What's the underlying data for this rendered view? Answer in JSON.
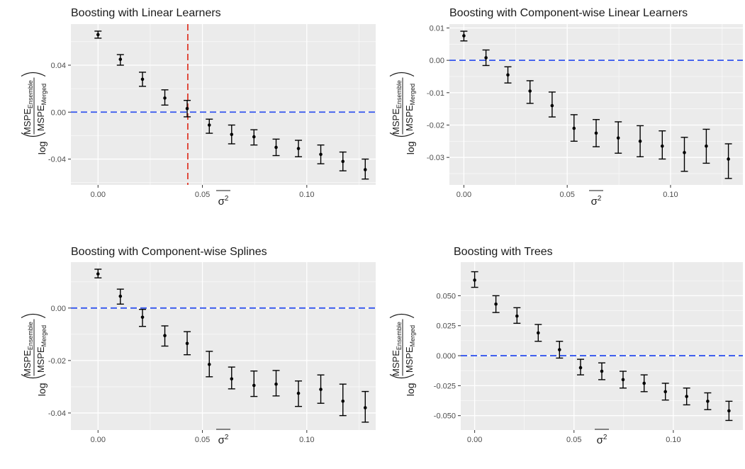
{
  "colors": {
    "panel_bg": "#ebebeb",
    "grid_major": "#ffffff",
    "reference_line": "#3355ee",
    "highlight_line": "#e03a2a",
    "point": "#000000",
    "text_dark": "#1a1a1a",
    "tick_text": "#4d4d4d"
  },
  "chart_data": [
    {
      "type": "scatter",
      "title": "Boosting with Linear Learners",
      "xlabel": "σ̄²",
      "ylabel": "log(MSPE_Ensemble / MSPE_Merged)",
      "ylabel_parts": {
        "fn": "log",
        "num": "MSPE",
        "num_sub": "Ensemble",
        "den": "MSPE",
        "den_sub": "Merged"
      },
      "xlim": [
        -0.013,
        0.133
      ],
      "ylim": [
        -0.062,
        0.075
      ],
      "x_ticks": [
        0,
        0.05,
        0.1
      ],
      "x_tick_labels": [
        "0.00",
        "0.05",
        "0.10"
      ],
      "y_ticks": [
        -0.04,
        0,
        0.04
      ],
      "y_tick_labels": [
        "-0.04",
        "0.00",
        "0.04"
      ],
      "hline": 0,
      "vline": 0.043,
      "grid": true,
      "x": [
        0,
        0.0107,
        0.0213,
        0.032,
        0.0427,
        0.0533,
        0.064,
        0.0747,
        0.0853,
        0.096,
        0.1067,
        0.1173,
        0.128
      ],
      "y": [
        0.066,
        0.045,
        0.028,
        0.012,
        0.003,
        -0.011,
        -0.019,
        -0.021,
        -0.03,
        -0.031,
        -0.036,
        -0.042,
        -0.049
      ],
      "ymin": [
        0.063,
        0.04,
        0.022,
        0.006,
        -0.004,
        -0.018,
        -0.027,
        -0.028,
        -0.037,
        -0.038,
        -0.044,
        -0.05,
        -0.057
      ],
      "ymax": [
        0.069,
        0.049,
        0.034,
        0.019,
        0.01,
        -0.006,
        -0.011,
        -0.015,
        -0.023,
        -0.024,
        -0.028,
        -0.034,
        -0.04
      ]
    },
    {
      "type": "scatter",
      "title": "Boosting with Component-wise Linear Learners",
      "xlabel": "σ̄²",
      "ylabel": "log(MSPE_Ensemble / MSPE_Merged)",
      "ylabel_parts": {
        "fn": "log",
        "num": "MSPE",
        "num_sub": "Ensemble",
        "den": "MSPE",
        "den_sub": "Merged"
      },
      "xlim": [
        -0.007,
        0.135
      ],
      "ylim": [
        -0.0385,
        0.0112
      ],
      "x_ticks": [
        0,
        0.05,
        0.1
      ],
      "x_tick_labels": [
        "0.00",
        "0.05",
        "0.10"
      ],
      "y_ticks": [
        -0.03,
        -0.02,
        -0.01,
        0,
        0.01
      ],
      "y_tick_labels": [
        "-0.03",
        "-0.02",
        "-0.01",
        "0.00",
        "0.01"
      ],
      "hline": 0,
      "grid": true,
      "x": [
        0,
        0.0107,
        0.0213,
        0.032,
        0.0427,
        0.0533,
        0.064,
        0.0747,
        0.0853,
        0.096,
        0.1067,
        0.1173,
        0.128
      ],
      "y": [
        0.0076,
        0.0008,
        -0.0045,
        -0.0095,
        -0.014,
        -0.021,
        -0.0225,
        -0.024,
        -0.025,
        -0.0265,
        -0.0285,
        -0.0265,
        -0.0305
      ],
      "ymin": [
        0.006,
        -0.0016,
        -0.007,
        -0.0133,
        -0.0175,
        -0.025,
        -0.0267,
        -0.0287,
        -0.0298,
        -0.0305,
        -0.0343,
        -0.0318,
        -0.0365
      ],
      "ymax": [
        0.009,
        0.0032,
        -0.002,
        -0.0063,
        -0.0098,
        -0.0168,
        -0.0183,
        -0.019,
        -0.0202,
        -0.0218,
        -0.0238,
        -0.0213,
        -0.0258
      ]
    },
    {
      "type": "scatter",
      "title": "Boosting with Component-wise Splines",
      "xlabel": "σ̄²",
      "ylabel": "log(MSPE_Ensemble / MSPE_Merged)",
      "ylabel_parts": {
        "fn": "log",
        "num": "MSPE",
        "num_sub": "Ensemble",
        "den": "MSPE",
        "den_sub": "Merged"
      },
      "xlim": [
        -0.013,
        0.133
      ],
      "ylim": [
        -0.0465,
        0.0175
      ],
      "x_ticks": [
        0,
        0.05,
        0.1
      ],
      "x_tick_labels": [
        "0.00",
        "0.05",
        "0.10"
      ],
      "y_ticks": [
        -0.04,
        -0.02,
        0
      ],
      "y_tick_labels": [
        "-0.04",
        "-0.02",
        "0.00"
      ],
      "hline": 0,
      "grid": true,
      "x": [
        0,
        0.0107,
        0.0213,
        0.032,
        0.0427,
        0.0533,
        0.064,
        0.0747,
        0.0853,
        0.096,
        0.1067,
        0.1173,
        0.128
      ],
      "y": [
        0.013,
        0.0045,
        -0.0035,
        -0.0105,
        -0.0135,
        -0.0215,
        -0.027,
        -0.0295,
        -0.029,
        -0.0325,
        -0.031,
        -0.0355,
        -0.038
      ],
      "ymin": [
        0.0115,
        0.0015,
        -0.007,
        -0.0145,
        -0.0178,
        -0.0262,
        -0.0308,
        -0.0337,
        -0.0335,
        -0.0375,
        -0.0363,
        -0.041,
        -0.0435
      ],
      "ymax": [
        0.0148,
        0.0072,
        -0.0005,
        -0.0068,
        -0.009,
        -0.0165,
        -0.0225,
        -0.024,
        -0.0238,
        -0.0278,
        -0.0255,
        -0.029,
        -0.0318
      ]
    },
    {
      "type": "scatter",
      "title": "Boosting with Trees",
      "xlabel": "σ̄²",
      "ylabel": "log(MSPE_Ensemble / MSPE_Merged)",
      "ylabel_parts": {
        "fn": "log",
        "num": "MSPE",
        "num_sub": "Ensemble",
        "den": "MSPE",
        "den_sub": "Merged"
      },
      "xlim": [
        -0.007,
        0.135
      ],
      "ylim": [
        -0.062,
        0.078
      ],
      "x_ticks": [
        0,
        0.05,
        0.1
      ],
      "x_tick_labels": [
        "0.00",
        "0.05",
        "0.10"
      ],
      "y_ticks": [
        -0.05,
        -0.025,
        0,
        0.025,
        0.05
      ],
      "y_tick_labels": [
        "-0.050",
        "-0.025",
        "0.000",
        "0.025",
        "0.050"
      ],
      "hline": 0,
      "grid": true,
      "x": [
        0,
        0.0107,
        0.0213,
        0.032,
        0.0427,
        0.0533,
        0.064,
        0.0747,
        0.0853,
        0.096,
        0.1067,
        0.1173,
        0.128
      ],
      "y": [
        0.063,
        0.043,
        0.033,
        0.019,
        0.005,
        -0.01,
        -0.013,
        -0.02,
        -0.023,
        -0.03,
        -0.034,
        -0.038,
        -0.046
      ],
      "ymin": [
        0.057,
        0.036,
        0.027,
        0.012,
        -0.002,
        -0.016,
        -0.02,
        -0.027,
        -0.03,
        -0.037,
        -0.041,
        -0.045,
        -0.054
      ],
      "ymax": [
        0.07,
        0.05,
        0.04,
        0.026,
        0.012,
        -0.003,
        -0.006,
        -0.013,
        -0.016,
        -0.023,
        -0.027,
        -0.031,
        -0.038
      ]
    }
  ]
}
